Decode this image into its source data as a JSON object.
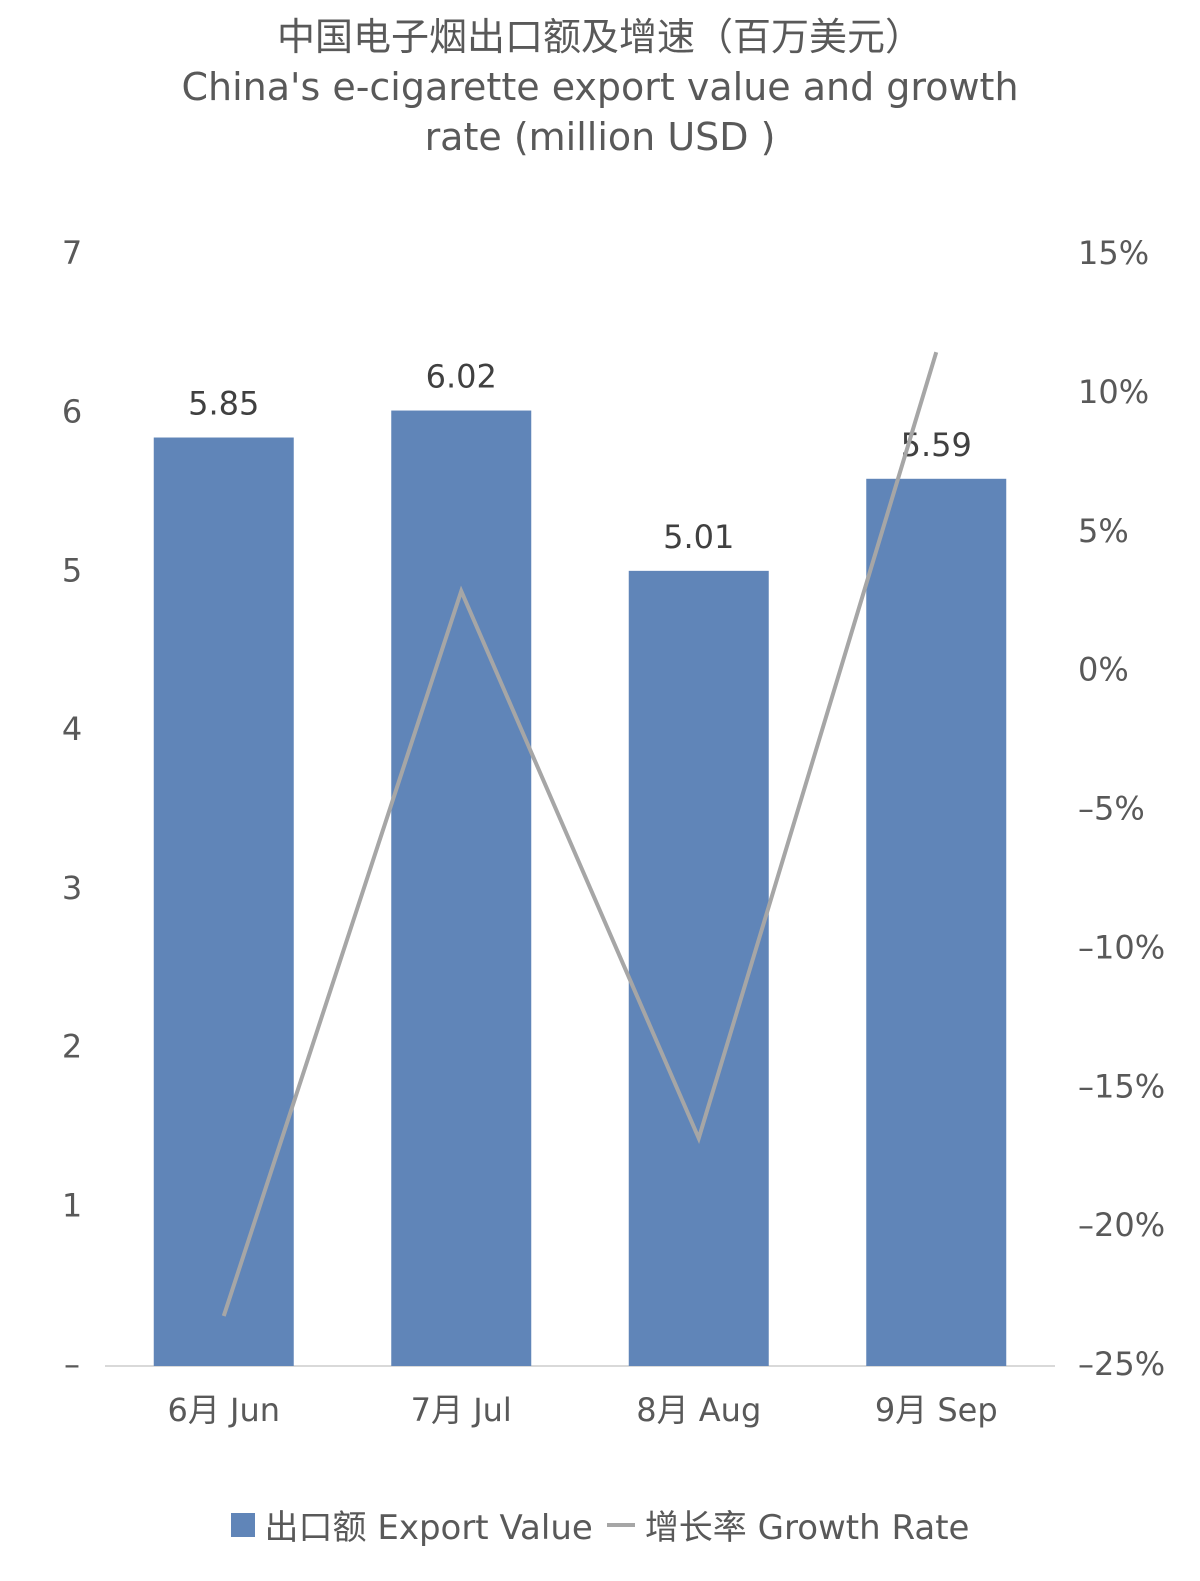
{
  "chart_data": {
    "type": "bar",
    "title": "中国电子烟出口额及增速（百万美元）",
    "subtitle": "China's e-cigarette export value and growth rate (million USD )",
    "categories": [
      "6月 Jun",
      "7月 Jul",
      "8月 Aug",
      "9月 Sep"
    ],
    "series": [
      {
        "name": "出口额 Export Value",
        "type": "bar",
        "color": "#6085b8",
        "values": [
          5.85,
          6.02,
          5.01,
          5.59
        ]
      },
      {
        "name": "增长率 Growth Rate",
        "type": "line",
        "axis": "y2",
        "color": "#a6a6a6",
        "values": [
          -23.2,
          2.9,
          -16.8,
          11.5
        ]
      }
    ],
    "ylim": [
      0,
      7
    ],
    "yticks": [
      {
        "value": 0,
        "label": "–"
      },
      1,
      2,
      3,
      4,
      5,
      6,
      7
    ],
    "y2lim": [
      -25,
      15
    ],
    "y2ticks": [
      {
        "value": -25,
        "label": "–25%"
      },
      {
        "value": -20,
        "label": "–20%"
      },
      {
        "value": -15,
        "label": "–15%"
      },
      {
        "value": -10,
        "label": "–10%"
      },
      {
        "value": -5,
        "label": "–5%"
      },
      {
        "value": 0,
        "label": "0%"
      },
      {
        "value": 5,
        "label": "5%"
      },
      {
        "value": 10,
        "label": "10%"
      },
      {
        "value": 15,
        "label": "15%"
      }
    ],
    "legend": "bottom"
  }
}
